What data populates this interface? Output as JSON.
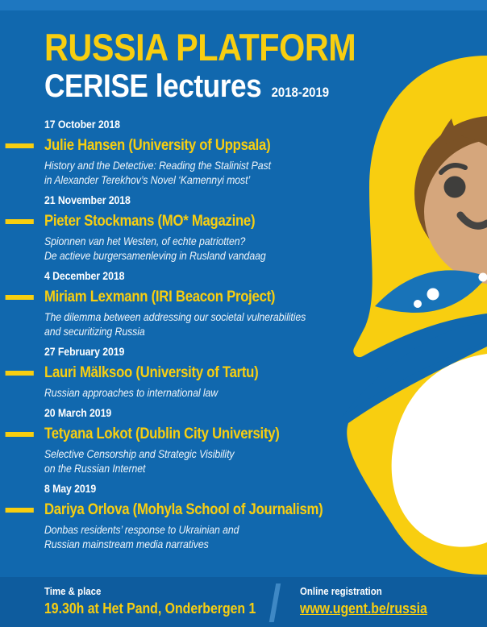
{
  "header": {
    "title": "RUSSIA PLATFORM",
    "subtitle": "CERISE lectures",
    "season": "2018-2019"
  },
  "lectures": [
    {
      "date": "17 October 2018",
      "speaker": "Julie Hansen (University of Uppsala)",
      "title_lines": [
        "History and the Detective: Reading the Stalinist Past",
        "in Alexander Terekhov’s Novel ‘Kamennyi most’"
      ]
    },
    {
      "date": "21 November 2018",
      "speaker": "Pieter Stockmans (MO* Magazine)",
      "title_lines": [
        "Spionnen van het Westen, of echte patriotten?",
        "De actieve burgersamenleving in Rusland vandaag"
      ]
    },
    {
      "date": "4 December 2018",
      "speaker": "Miriam Lexmann (IRI Beacon Project)",
      "title_lines": [
        "The dilemma between addressing our societal vulnerabilities",
        "and securitizing Russia"
      ]
    },
    {
      "date": "27 February 2019",
      "speaker": "Lauri Mälksoo (University of Tartu)",
      "title_lines": [
        "Russian approaches to international law"
      ]
    },
    {
      "date": "20 March 2019",
      "speaker": "Tetyana Lokot (Dublin City University)",
      "title_lines": [
        "Selective Censorship and Strategic Visibility",
        "on the Russian Internet"
      ]
    },
    {
      "date": "8 May 2019",
      "speaker": "Dariya Orlova (Mohyla School of Journalism)",
      "title_lines": [
        "Donbas residents’ response to Ukrainian and",
        "Russian mainstream media narratives"
      ]
    }
  ],
  "footer": {
    "time_label": "Time & place",
    "time_value": "19.30h at Het Pand, Onderbergen 1",
    "registration_label": "Online registration",
    "registration_link": "www.ugent.be/russia"
  },
  "illustration": "matryoshka-doll",
  "colors": {
    "background": "#1168AE",
    "top_strip": "#1E77C0",
    "footer_band": "#0E5C9E",
    "accent_yellow": "#F8CE10",
    "text_white": "#FFFFFF",
    "doll_hair_brown": "#7B5226",
    "doll_face_tan": "#D5A67C",
    "doll_features": "#3F3E3C",
    "footer_slash": "#3E88C5"
  }
}
